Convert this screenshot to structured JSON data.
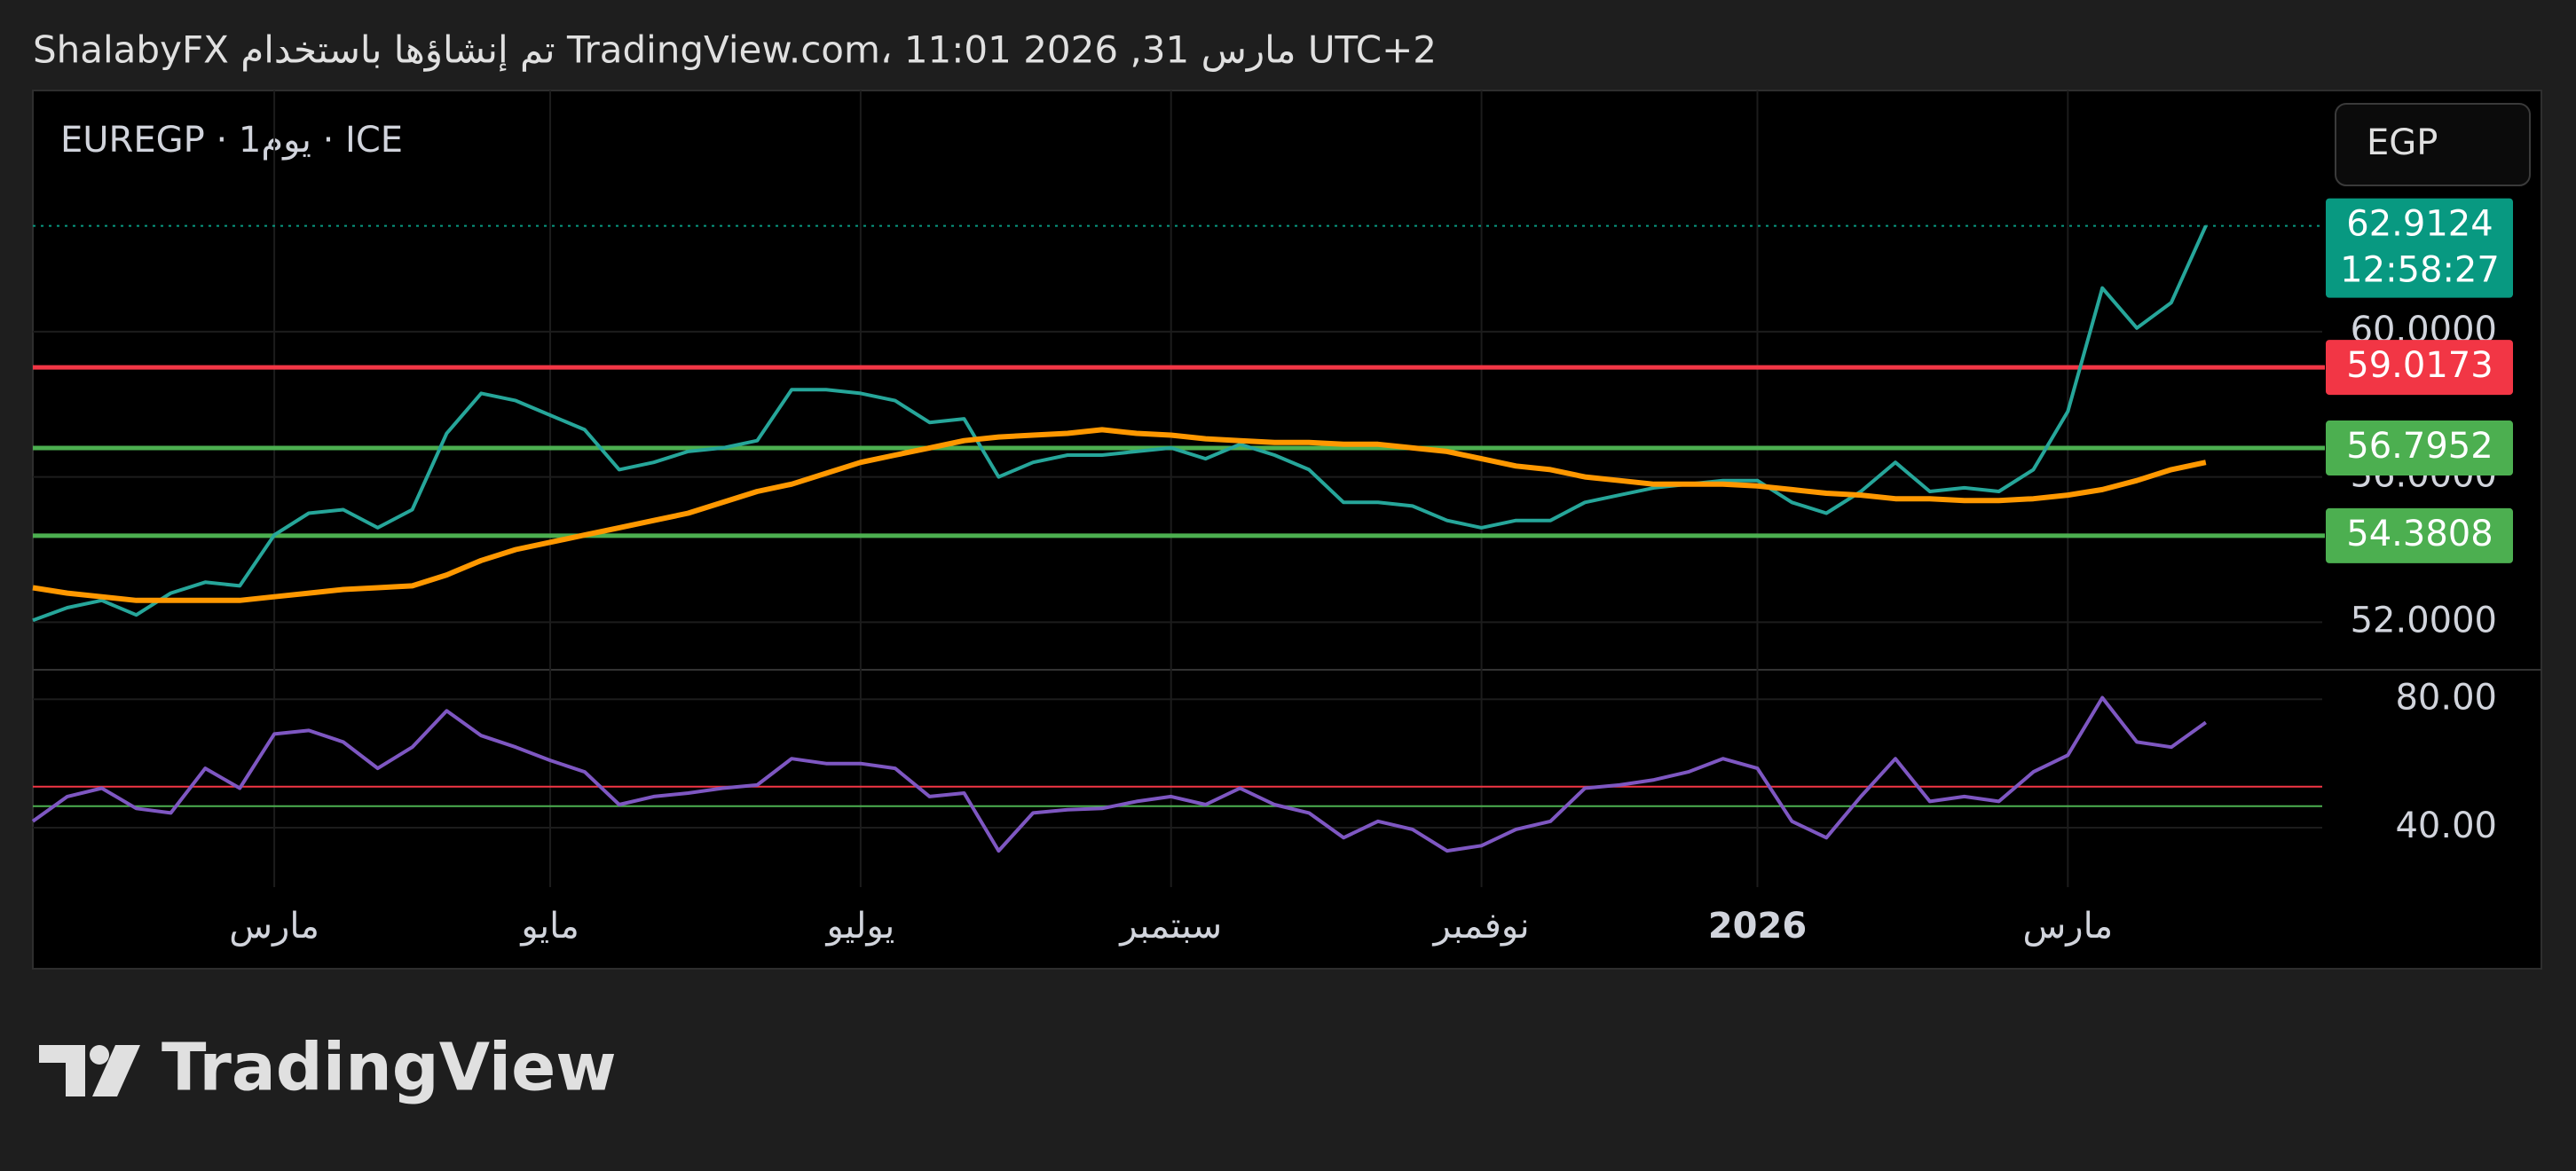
{
  "header": {
    "caption": "ShalabyFX تم إنشاؤها باستخدام TradingView.com، 11:01 2026 ,31 مارس UTC+2",
    "symbol": "EUREGP · 1يوم · ICE",
    "currency": "EGP",
    "logo": "TradingView"
  },
  "chart_data": [
    {
      "type": "line",
      "categories": [
        null,
        null,
        null,
        null,
        null,
        null,
        null,
        "مارس",
        null,
        null,
        null,
        null,
        null,
        null,
        null,
        "مايو",
        null,
        null,
        null,
        null,
        null,
        null,
        null,
        null,
        "يوليو",
        null,
        null,
        null,
        null,
        null,
        null,
        null,
        null,
        "سبتمبر",
        null,
        null,
        null,
        null,
        null,
        null,
        null,
        null,
        "نوفمبر",
        null,
        null,
        null,
        null,
        null,
        null,
        null,
        "2026",
        null,
        null,
        null,
        null,
        null,
        null,
        null,
        null,
        "مارس",
        null,
        null,
        null,
        null
      ],
      "series": [
        {
          "color": "#26a69a",
          "values": [
            52.05,
            52.4,
            52.6,
            52.2,
            52.8,
            53.1,
            53.0,
            54.4,
            55.0,
            55.1,
            54.6,
            55.1,
            57.2,
            58.3,
            58.1,
            57.7,
            57.3,
            56.2,
            56.4,
            56.7,
            56.8,
            57.0,
            58.4,
            58.4,
            58.3,
            58.1,
            57.5,
            57.6,
            56.0,
            56.4,
            56.6,
            56.6,
            56.7,
            56.8,
            56.5,
            56.9,
            56.6,
            56.2,
            55.3,
            55.3,
            55.2,
            54.8,
            54.6,
            54.8,
            54.8,
            55.3,
            55.5,
            55.7,
            55.8,
            55.9,
            55.9,
            55.3,
            55.0,
            55.6,
            56.4,
            55.6,
            55.7,
            55.6,
            56.2,
            57.8,
            61.2,
            60.1,
            60.8,
            62.9124
          ]
        },
        {
          "color": "#ff9800",
          "values": [
            52.95,
            52.8,
            52.7,
            52.6,
            52.6,
            52.6,
            52.6,
            52.7,
            52.8,
            52.9,
            52.95,
            53.0,
            53.3,
            53.7,
            54.0,
            54.2,
            54.4,
            54.6,
            54.8,
            55.0,
            55.3,
            55.6,
            55.8,
            56.1,
            56.4,
            56.6,
            56.8,
            57.0,
            57.1,
            57.15,
            57.2,
            57.3,
            57.2,
            57.15,
            57.05,
            57.0,
            56.95,
            56.95,
            56.9,
            56.9,
            56.8,
            56.7,
            56.5,
            56.3,
            56.2,
            56.0,
            55.9,
            55.8,
            55.8,
            55.8,
            55.75,
            55.65,
            55.55,
            55.5,
            55.4,
            55.4,
            55.35,
            55.35,
            55.4,
            55.5,
            55.65,
            55.9,
            56.2,
            56.4
          ]
        }
      ],
      "levels": [
        {
          "value": 59.0173,
          "color": "#f23645"
        },
        {
          "value": 56.7952,
          "color": "#4caf50"
        },
        {
          "value": 54.3808,
          "color": "#4caf50"
        }
      ],
      "last_price": {
        "value": 62.9124,
        "countdown": "12:58:27",
        "color": "#089981"
      },
      "ylim": [
        50.69,
        66.64
      ],
      "yticks": [
        {
          "value": 60,
          "label": "60.0000"
        },
        {
          "value": 56,
          "label": "56.0000"
        },
        {
          "value": 52,
          "label": "52.0000"
        }
      ],
      "grid": true
    },
    {
      "type": "line",
      "series": [
        {
          "color": "#7e57c2",
          "values": [
            42,
            49.7,
            52.3,
            46,
            44.6,
            58.5,
            52.3,
            69.2,
            70.3,
            66.7,
            58.5,
            65.1,
            76.4,
            68.7,
            65.1,
            61,
            57.4,
            47.2,
            49.7,
            50.8,
            52.3,
            53.3,
            61.5,
            60,
            60,
            58.5,
            49.7,
            50.8,
            32.8,
            44.6,
            45.6,
            46,
            48.2,
            49.7,
            47.2,
            52.3,
            47.2,
            44.6,
            36.9,
            42,
            39.5,
            32.8,
            34.4,
            39.5,
            42,
            52.3,
            53.3,
            54.9,
            57.4,
            61.5,
            58.5,
            42,
            36.9,
            49.7,
            61.5,
            48.2,
            49.7,
            48.2,
            57.4,
            62.6,
            80.5,
            66.7,
            65.1,
            72.8
          ]
        }
      ],
      "levels": [
        {
          "value": 52.8,
          "color": "#f23645"
        },
        {
          "value": 46.7,
          "color": "#4caf50"
        }
      ],
      "ylim": [
        21.5,
        89.2
      ],
      "yticks": [
        {
          "value": 80,
          "label": "80.00"
        },
        {
          "value": 40,
          "label": "40.00"
        }
      ],
      "grid": true
    }
  ]
}
